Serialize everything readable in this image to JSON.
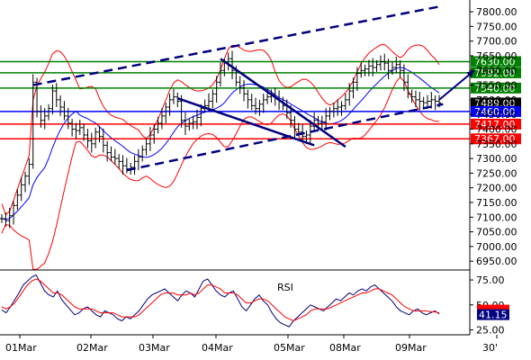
{
  "chart_data": [
    {
      "type": "line",
      "name": "price",
      "title": "",
      "xlabel": "",
      "ylabel": "",
      "ylim": [
        6920,
        7840
      ],
      "y_ticks": [
        6950,
        7000,
        7050,
        7100,
        7150,
        7200,
        7250,
        7300,
        7350,
        7400,
        7450,
        7500,
        7550,
        7600,
        7650,
        7700,
        7750,
        7800
      ],
      "y_tick_labels": [
        "6950.00",
        "7000.00",
        "7050.00",
        "7100.00",
        "7150.00",
        "7200.00",
        "7250.00",
        "7300.00",
        "7350.00",
        "7400.00",
        "7450.00",
        "7500.00",
        "7550.00",
        "7600.00",
        "7650.00",
        "7700.00",
        "7750.00",
        "7800.00"
      ],
      "x_labels": [
        "01Mar",
        "02Mar",
        "03Mar",
        "04Mar",
        "05Mar",
        "08Mar",
        "09Mar",
        "30'"
      ],
      "levels": [
        {
          "value": 7630,
          "label": "7630.00",
          "color": "#008000"
        },
        {
          "value": 7592,
          "label": "7592.00",
          "color": "#008000"
        },
        {
          "value": 7540,
          "label": "7540.00",
          "color": "#008000"
        },
        {
          "value": 7489,
          "label": "7489.00",
          "color": "#000000"
        },
        {
          "value": 7460,
          "label": "7460.00",
          "color": "#0000ff"
        },
        {
          "value": 7417,
          "label": "7417.00",
          "color": "#ff0000"
        },
        {
          "value": 7367,
          "label": "7367.00",
          "color": "#ff0000"
        }
      ],
      "close": [
        7095,
        7088,
        7105,
        7140,
        7175,
        7210,
        7240,
        7280,
        7560,
        7460,
        7430,
        7445,
        7470,
        7530,
        7500,
        7475,
        7445,
        7420,
        7400,
        7395,
        7405,
        7380,
        7360,
        7350,
        7390,
        7375,
        7345,
        7320,
        7305,
        7300,
        7290,
        7275,
        7265,
        7270,
        7290,
        7305,
        7330,
        7350,
        7380,
        7400,
        7420,
        7445,
        7475,
        7500,
        7510,
        7495,
        7430,
        7410,
        7420,
        7425,
        7440,
        7470,
        7480,
        7495,
        7520,
        7560,
        7600,
        7625,
        7640,
        7600,
        7560,
        7540,
        7520,
        7500,
        7480,
        7470,
        7485,
        7500,
        7510,
        7520,
        7505,
        7495,
        7480,
        7455,
        7430,
        7400,
        7390,
        7375,
        7380,
        7410,
        7430,
        7420,
        7425,
        7445,
        7460,
        7470,
        7475,
        7480,
        7500,
        7530,
        7560,
        7590,
        7600,
        7605,
        7615,
        7610,
        7620,
        7630,
        7625,
        7600,
        7610,
        7620,
        7600,
        7560,
        7520,
        7510,
        7500,
        7495,
        7490,
        7495,
        7500,
        7495,
        7489
      ],
      "series": [
        {
          "name": "bollinger-upper",
          "color": "#ff0000"
        },
        {
          "name": "bollinger-lower",
          "color": "#ff0000"
        },
        {
          "name": "moving-average",
          "color": "#0000ff"
        }
      ],
      "trendlines": [
        {
          "points": [
            [
              8,
              7550
            ],
            [
              113,
              7820
            ]
          ],
          "color": "#000080",
          "style": "dashed"
        },
        {
          "points": [
            [
              32,
              7260
            ],
            [
              113,
              7485
            ]
          ],
          "color": "#000080",
          "style": "dashed"
        },
        {
          "points": [
            [
              56,
              7640
            ],
            [
              88,
              7340
            ]
          ],
          "color": "#000080",
          "style": "solid"
        },
        {
          "points": [
            [
              45,
              7505
            ],
            [
              80,
              7345
            ]
          ],
          "color": "#000080",
          "style": "solid"
        }
      ],
      "arrow": {
        "from": [
          112,
          7500
        ],
        "to": [
          121,
          7600
        ],
        "color": "#000080"
      }
    },
    {
      "type": "line",
      "name": "rsi",
      "title": "RSI",
      "ylim": [
        20,
        85
      ],
      "y_ticks": [
        25,
        50,
        75
      ],
      "y_tick_labels": [
        "25.00",
        "50.00",
        "75.00"
      ],
      "current": {
        "value": 41.15,
        "label": "41.15"
      },
      "series": [
        {
          "name": "rsi",
          "color": "#000080",
          "values": [
            45,
            42,
            48,
            55,
            62,
            70,
            74,
            78,
            80,
            72,
            64,
            60,
            58,
            64,
            55,
            50,
            45,
            40,
            42,
            46,
            48,
            44,
            40,
            38,
            44,
            42,
            40,
            36,
            34,
            38,
            36,
            40,
            44,
            50,
            56,
            60,
            62,
            64,
            66,
            62,
            58,
            54,
            60,
            64,
            62,
            58,
            66,
            74,
            76,
            70,
            64,
            60,
            58,
            62,
            64,
            56,
            48,
            44,
            50,
            56,
            60,
            54,
            50,
            42,
            36,
            32,
            30,
            28,
            34,
            38,
            42,
            46,
            50,
            48,
            46,
            44,
            48,
            52,
            56,
            54,
            58,
            62,
            60,
            64,
            66,
            64,
            68,
            70,
            66,
            62,
            58,
            54,
            48,
            44,
            42,
            40,
            44,
            46,
            42,
            40,
            42,
            44,
            41
          ]
        },
        {
          "name": "rsi-signal",
          "color": "#ff0000",
          "values": [
            48,
            46,
            48,
            52,
            58,
            64,
            70,
            74,
            76,
            74,
            70,
            66,
            62,
            62,
            60,
            56,
            52,
            48,
            46,
            46,
            46,
            46,
            44,
            42,
            42,
            42,
            42,
            40,
            38,
            38,
            38,
            38,
            40,
            44,
            48,
            52,
            56,
            60,
            62,
            62,
            62,
            60,
            60,
            60,
            62,
            60,
            62,
            66,
            70,
            70,
            68,
            66,
            62,
            62,
            62,
            60,
            56,
            52,
            52,
            54,
            56,
            56,
            54,
            50,
            46,
            42,
            38,
            36,
            34,
            36,
            38,
            40,
            44,
            46,
            46,
            46,
            46,
            48,
            50,
            52,
            54,
            56,
            58,
            60,
            62,
            62,
            64,
            66,
            66,
            64,
            62,
            60,
            56,
            52,
            48,
            46,
            44,
            44,
            44,
            44,
            43,
            43,
            42
          ]
        }
      ]
    }
  ]
}
